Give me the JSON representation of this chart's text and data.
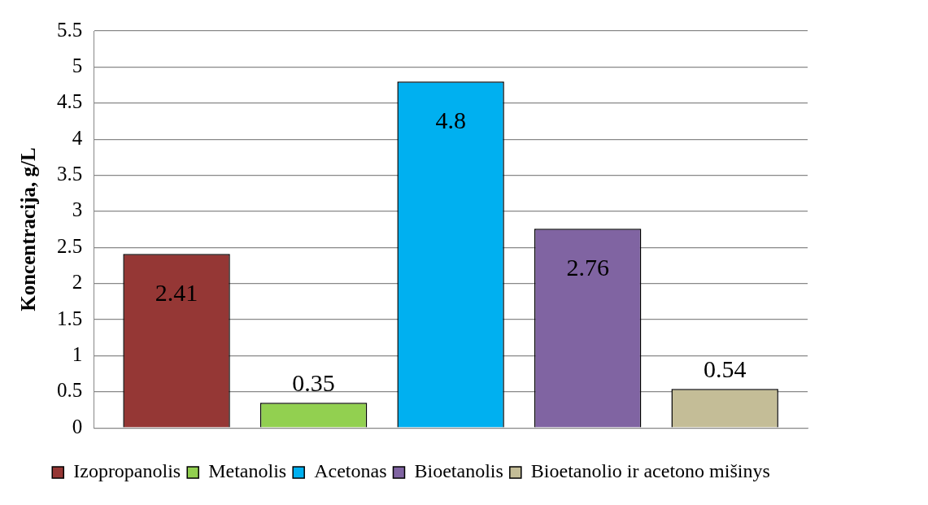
{
  "chart_data": {
    "type": "bar",
    "ylabel": "Koncentracija, g/L",
    "categories": [
      null
    ],
    "series": [
      {
        "name": "Izopropanolis",
        "color": "#953735",
        "values": [
          2.41
        ]
      },
      {
        "name": "Metanolis",
        "color": "#92d050",
        "values": [
          0.35
        ]
      },
      {
        "name": "Acetonas",
        "color": "#00b0f0",
        "values": [
          4.8
        ]
      },
      {
        "name": "Bioetanolis",
        "color": "#8064a2",
        "values": [
          2.76
        ]
      },
      {
        "name": "Bioetanolio ir acetono mišinys",
        "color": "#c4bd97",
        "values": [
          0.54
        ]
      }
    ],
    "ylim": [
      0,
      5.5
    ],
    "yticks": [
      0,
      0.5,
      1,
      1.5,
      2,
      2.5,
      3,
      3.5,
      4,
      4.5,
      5,
      5.5
    ],
    "grid": "y",
    "legend": "bottom",
    "data_labels": true
  }
}
